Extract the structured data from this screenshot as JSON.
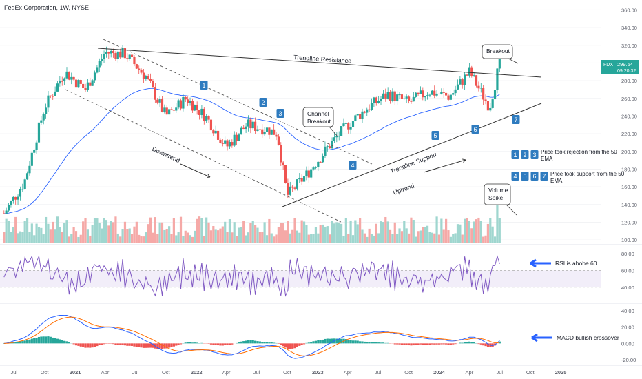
{
  "chart_title": "FedEx Corporation, 1W, NYSE",
  "chart_data": {
    "type": "line",
    "ticker": "FDX",
    "last_price": "299.54",
    "countdown": "09:20:32",
    "price_axis": [
      "360.00",
      "340.00",
      "320.00",
      "300.00",
      "280.00",
      "260.00",
      "240.00",
      "220.00",
      "200.00",
      "180.00",
      "160.00",
      "140.00",
      "120.00",
      "100.00"
    ],
    "x_ticks": [
      "Jul",
      "Oct",
      "2021",
      "Apr",
      "Jul",
      "Oct",
      "2022",
      "Apr",
      "Jul",
      "Oct",
      "2023",
      "Apr",
      "Jul",
      "Oct",
      "2024",
      "Apr",
      "Jul",
      "Oct",
      "2025"
    ],
    "rsi_axis": [
      "80.00",
      "60.00",
      "40.00"
    ],
    "macd_axis": [
      "40.00",
      "20.00",
      "0.000",
      "-20.00"
    ],
    "price_series_approx": {
      "dates": [
        "2020-06",
        "2020-08",
        "2020-10",
        "2020-12",
        "2021-02",
        "2021-04",
        "2021-06",
        "2021-08",
        "2021-10",
        "2021-12",
        "2022-02",
        "2022-04",
        "2022-06",
        "2022-08",
        "2022-09",
        "2022-10",
        "2022-12",
        "2023-02",
        "2023-04",
        "2023-06",
        "2023-08",
        "2023-10",
        "2023-12",
        "2024-02",
        "2024-04",
        "2024-06",
        "2024-07"
      ],
      "close": [
        130,
        165,
        250,
        290,
        270,
        312,
        310,
        285,
        240,
        260,
        238,
        205,
        230,
        225,
        220,
        150,
        175,
        205,
        230,
        250,
        265,
        255,
        268,
        262,
        290,
        250,
        300
      ]
    },
    "ema50_note": "50 EMA"
  },
  "annotations": {
    "trendline_resistance": "Trendline Resistance",
    "trendline_support": "Trendline Support",
    "downtrend": "Downtrend",
    "uptrend": "Uptrend",
    "channel_breakout": [
      "Channel",
      "Breakout"
    ],
    "breakout": "Breakout",
    "volume_spike": [
      "Volume",
      "Spike"
    ],
    "markers": [
      "1",
      "2",
      "3",
      "4",
      "5",
      "6",
      "7"
    ],
    "legend_rejection": [
      "Price took rejection from the 50",
      "EMA"
    ],
    "legend_support": [
      "Price took support from the 50",
      "EMA"
    ],
    "rsi_note": "RSI is abobe 60",
    "macd_note": "MACD bullish crossover"
  },
  "colors": {
    "up": "#26a69a",
    "down": "#ef5350",
    "ema": "#2962ff",
    "rsi": "#7e57c2",
    "macd": "#2962ff",
    "signal": "#ff6d00",
    "marker": "#2e7bbf"
  }
}
